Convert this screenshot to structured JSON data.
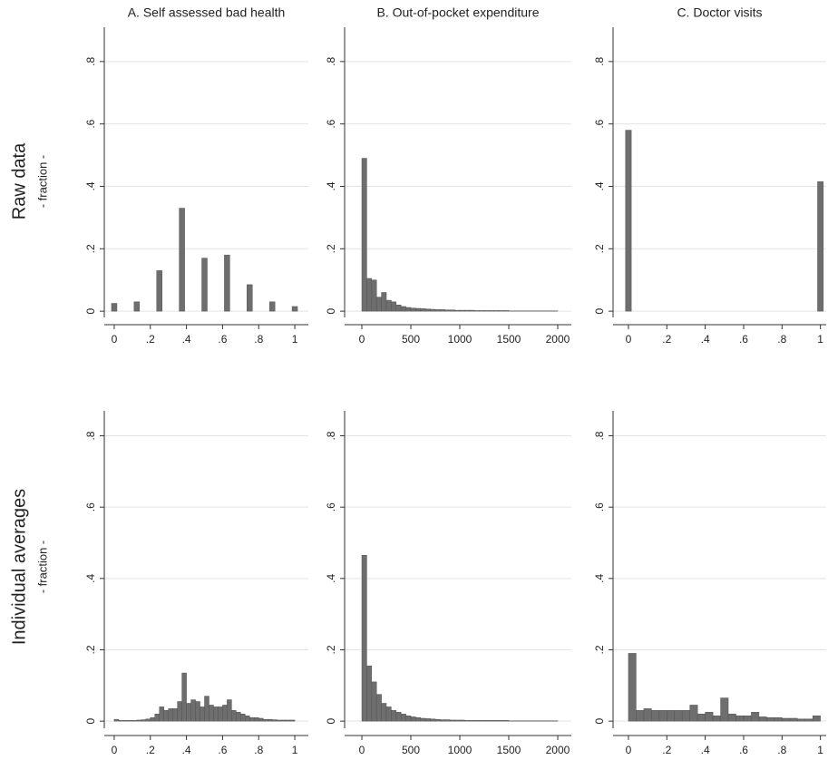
{
  "rows": [
    {
      "label": "Raw data",
      "sublabel": "- fraction -"
    },
    {
      "label": "Individual averages",
      "sublabel": "- fraction -"
    }
  ],
  "chart_data": [
    {
      "type": "histogram",
      "title": "A. Self assessed bad health",
      "color": "#6e6e6e",
      "grid": true,
      "bins": [
        -0.015,
        0.015,
        0.11,
        0.14,
        0.235,
        0.265,
        0.36,
        0.39,
        0.485,
        0.515,
        0.61,
        0.64,
        0.735,
        0.765,
        0.86,
        0.89,
        0.985,
        1.015
      ],
      "values": [
        0.025,
        0,
        0.03,
        0,
        0.13,
        0,
        0.33,
        0,
        0.17,
        0,
        0.18,
        0,
        0.085,
        0,
        0.03,
        0,
        0.015
      ],
      "xlim": [
        -0.055,
        1.075
      ],
      "ylim": [
        -0.02,
        0.91
      ],
      "xticks": [
        0,
        {
          "value": 0.2,
          "label": ".2"
        },
        {
          "value": 0.4,
          "label": ".4"
        },
        {
          "value": 0.6,
          "label": ".6"
        },
        {
          "value": 0.8,
          "label": ".8"
        },
        1
      ],
      "yticks": [
        0,
        {
          "value": 0.2,
          "label": ".2"
        },
        {
          "value": 0.4,
          "label": ".4"
        },
        {
          "value": 0.6,
          "label": ".6"
        },
        {
          "value": 0.8,
          "label": ".8"
        }
      ]
    },
    {
      "type": "histogram",
      "title": "B. Out-of-pocket expenditure",
      "color": "#6e6e6e",
      "grid": true,
      "bins": [
        0,
        50,
        100,
        150,
        200,
        250,
        300,
        350,
        400,
        450,
        500,
        550,
        600,
        650,
        700,
        750,
        800,
        850,
        900,
        950,
        1000,
        1050,
        1100,
        1150,
        1200,
        1250,
        1300,
        1350,
        1400,
        1450,
        1500,
        1550,
        1600,
        1650,
        1700,
        1750,
        1800,
        1850,
        1900,
        1950,
        2000
      ],
      "values": [
        0.49,
        0.105,
        0.1,
        0.045,
        0.06,
        0.035,
        0.03,
        0.02,
        0.015,
        0.012,
        0.01,
        0.009,
        0.008,
        0.007,
        0.006,
        0.005,
        0.005,
        0.004,
        0.004,
        0.003,
        0.003,
        0.003,
        0.003,
        0.002,
        0.002,
        0.002,
        0.002,
        0.002,
        0.002,
        0.002,
        0.001,
        0.001,
        0.001,
        0.001,
        0.001,
        0.001,
        0.001,
        0.001,
        0.001,
        0.001
      ],
      "xlim": [
        -176,
        2139
      ],
      "ylim": [
        -0.02,
        0.91
      ],
      "xticks": [
        0,
        500,
        1000,
        1500,
        2000
      ],
      "yticks": [
        0,
        {
          "value": 0.2,
          "label": ".2"
        },
        {
          "value": 0.4,
          "label": ".4"
        },
        {
          "value": 0.6,
          "label": ".6"
        },
        {
          "value": 0.8,
          "label": ".8"
        }
      ]
    },
    {
      "type": "histogram",
      "title": "C. Doctor visits",
      "color": "#6e6e6e",
      "grid": true,
      "bins": [
        -0.015,
        0.015,
        0.985,
        1.015
      ],
      "values": [
        0.58,
        0,
        0.415
      ],
      "xlim": [
        -0.08,
        1.03
      ],
      "ylim": [
        -0.02,
        0.91
      ],
      "xticks": [
        0,
        {
          "value": 0.2,
          "label": ".2"
        },
        {
          "value": 0.4,
          "label": ".4"
        },
        {
          "value": 0.6,
          "label": ".6"
        },
        {
          "value": 0.8,
          "label": ".8"
        },
        1
      ],
      "yticks": [
        0,
        {
          "value": 0.2,
          "label": ".2"
        },
        {
          "value": 0.4,
          "label": ".4"
        },
        {
          "value": 0.6,
          "label": ".6"
        },
        {
          "value": 0.8,
          "label": ".8"
        }
      ]
    },
    {
      "type": "histogram",
      "color": "#6e6e6e",
      "grid": true,
      "bins": [
        0,
        0.025,
        0.05,
        0.075,
        0.1,
        0.125,
        0.15,
        0.175,
        0.2,
        0.225,
        0.25,
        0.275,
        0.3,
        0.325,
        0.35,
        0.375,
        0.4,
        0.425,
        0.45,
        0.475,
        0.5,
        0.525,
        0.55,
        0.575,
        0.6,
        0.625,
        0.65,
        0.675,
        0.7,
        0.725,
        0.75,
        0.775,
        0.8,
        0.825,
        0.85,
        0.875,
        0.9,
        0.925,
        0.95,
        0.975,
        1
      ],
      "values": [
        0.005,
        0.002,
        0.002,
        0.002,
        0.002,
        0.003,
        0.004,
        0.006,
        0.01,
        0.02,
        0.04,
        0.03,
        0.035,
        0.035,
        0.055,
        0.135,
        0.05,
        0.06,
        0.055,
        0.04,
        0.07,
        0.045,
        0.04,
        0.04,
        0.045,
        0.06,
        0.03,
        0.025,
        0.02,
        0.015,
        0.01,
        0.01,
        0.008,
        0.005,
        0.005,
        0.004,
        0.003,
        0.003,
        0.003,
        0.003
      ],
      "xlim": [
        -0.055,
        1.075
      ],
      "ylim": [
        -0.02,
        0.87
      ],
      "xticks": [
        0,
        {
          "value": 0.2,
          "label": ".2"
        },
        {
          "value": 0.4,
          "label": ".4"
        },
        {
          "value": 0.6,
          "label": ".6"
        },
        {
          "value": 0.8,
          "label": ".8"
        },
        1
      ],
      "yticks": [
        0,
        {
          "value": 0.2,
          "label": ".2"
        },
        {
          "value": 0.4,
          "label": ".4"
        },
        {
          "value": 0.6,
          "label": ".6"
        },
        {
          "value": 0.8,
          "label": ".8"
        }
      ]
    },
    {
      "type": "histogram",
      "color": "#6e6e6e",
      "grid": true,
      "bins": [
        0,
        50,
        100,
        150,
        200,
        250,
        300,
        350,
        400,
        450,
        500,
        550,
        600,
        650,
        700,
        750,
        800,
        850,
        900,
        950,
        1000,
        1050,
        1100,
        1150,
        1200,
        1250,
        1300,
        1350,
        1400,
        1450,
        1500,
        1550,
        1600,
        1650,
        1700,
        1750,
        1800,
        1850,
        1900,
        1950,
        2000
      ],
      "values": [
        0.465,
        0.155,
        0.11,
        0.075,
        0.05,
        0.04,
        0.03,
        0.025,
        0.02,
        0.015,
        0.012,
        0.01,
        0.008,
        0.007,
        0.006,
        0.005,
        0.004,
        0.004,
        0.003,
        0.003,
        0.003,
        0.002,
        0.002,
        0.002,
        0.002,
        0.002,
        0.002,
        0.002,
        0.002,
        0.002,
        0.001,
        0.001,
        0.001,
        0.001,
        0.001,
        0.001,
        0.001,
        0.001,
        0.001,
        0.001
      ],
      "xlim": [
        -176,
        2139
      ],
      "ylim": [
        -0.02,
        0.87
      ],
      "xticks": [
        0,
        500,
        1000,
        1500,
        2000
      ],
      "yticks": [
        0,
        {
          "value": 0.2,
          "label": ".2"
        },
        {
          "value": 0.4,
          "label": ".4"
        },
        {
          "value": 0.6,
          "label": ".6"
        },
        {
          "value": 0.8,
          "label": ".8"
        }
      ]
    },
    {
      "type": "histogram",
      "color": "#6e6e6e",
      "grid": true,
      "bins": [
        0,
        0.04,
        0.08,
        0.12,
        0.16,
        0.2,
        0.24,
        0.28,
        0.32,
        0.36,
        0.4,
        0.44,
        0.48,
        0.52,
        0.56,
        0.6,
        0.64,
        0.68,
        0.72,
        0.76,
        0.8,
        0.84,
        0.88,
        0.92,
        0.96,
        1
      ],
      "values": [
        0.19,
        0.03,
        0.035,
        0.03,
        0.03,
        0.03,
        0.03,
        0.03,
        0.045,
        0.02,
        0.025,
        0.015,
        0.065,
        0.02,
        0.015,
        0.015,
        0.025,
        0.012,
        0.01,
        0.01,
        0.008,
        0.008,
        0.006,
        0.006,
        0.015
      ],
      "xlim": [
        -0.08,
        1.03
      ],
      "ylim": [
        -0.02,
        0.87
      ],
      "xticks": [
        0,
        {
          "value": 0.2,
          "label": ".2"
        },
        {
          "value": 0.4,
          "label": ".4"
        },
        {
          "value": 0.6,
          "label": ".6"
        },
        {
          "value": 0.8,
          "label": ".8"
        },
        1
      ],
      "yticks": [
        0,
        {
          "value": 0.2,
          "label": ".2"
        },
        {
          "value": 0.4,
          "label": ".4"
        },
        {
          "value": 0.6,
          "label": ".6"
        },
        {
          "value": 0.8,
          "label": ".8"
        }
      ]
    }
  ]
}
